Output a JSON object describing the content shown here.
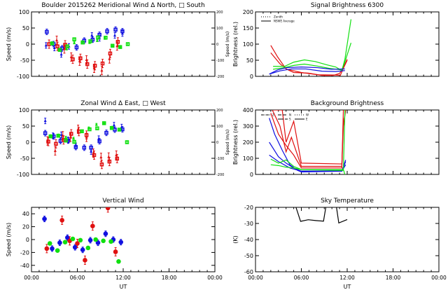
{
  "colors": {
    "blue": "#1010e0",
    "red": "#e01010",
    "green": "#10e010",
    "axis": "#000000"
  },
  "x_axis": {
    "label": "UT",
    "ticks": [
      "00:00",
      "06:00",
      "12:00",
      "18:00",
      "00:00"
    ],
    "range_hours": [
      0,
      24
    ]
  },
  "chart_data": [
    {
      "id": "meridional",
      "type": "scatter",
      "title": "Boulder   2015262     Meridional Wind   Δ North, □ South",
      "ylabel": "Speed (m/s)",
      "ylim": [
        -100,
        100
      ],
      "yticks": [
        "100",
        "50",
        "0",
        "-50",
        "-100"
      ],
      "right_axis": {
        "label": "Speed (m/s)",
        "ticks": [
          "200",
          "100",
          "0",
          "-100",
          "-200"
        ],
        "ylim": [
          -200,
          200
        ]
      },
      "series": [
        {
          "color": "blue",
          "marker": "triangle",
          "x": [
            1.9,
            3.0,
            3.9,
            4.9,
            7.9,
            8.9,
            10.9,
            11.9
          ],
          "y": [
            -4,
            -12,
            -32,
            -7,
            27,
            18,
            27,
            33
          ]
        },
        {
          "color": "blue",
          "marker": "square",
          "x": [
            2.0,
            2.9,
            4.0,
            5.9,
            6.9,
            8.0,
            8.9,
            9.9,
            11.0,
            11.9
          ],
          "y": [
            38,
            0,
            -13,
            -10,
            11,
            14,
            29,
            40,
            45,
            40
          ]
        },
        {
          "color": "red",
          "marker": "triangle",
          "x": [
            3.3,
            4.3,
            5.2,
            6.3,
            7.2,
            8.2,
            9.2,
            10.2,
            11.2
          ],
          "y": [
            12,
            -15,
            -40,
            -53,
            -49,
            -75,
            -82,
            -46,
            -6
          ]
        },
        {
          "color": "red",
          "marker": "square",
          "x": [
            2.3,
            3.4,
            4.4,
            5.4,
            6.4,
            7.3,
            8.3,
            9.3,
            10.3,
            11.3
          ],
          "y": [
            0,
            -7,
            -2,
            -47,
            -44,
            -62,
            -67,
            -60,
            -29,
            7
          ]
        },
        {
          "color": "green",
          "marker": "triangle",
          "x": [
            2.6,
            3.6,
            4.6,
            5.6,
            6.6,
            7.6,
            8.6,
            9.6,
            10.6,
            11.6
          ],
          "y": [
            4,
            -16,
            -15,
            4,
            7,
            5,
            11,
            18,
            -5,
            -8
          ]
        },
        {
          "color": "green",
          "marker": "square",
          "x": [
            2.7,
            3.7,
            4.7,
            5.6,
            6.7,
            7.7,
            8.7,
            9.7,
            10.6,
            11.6,
            12.6
          ],
          "y": [
            2,
            -18,
            -7,
            15,
            5,
            9,
            21,
            20,
            -5,
            -9,
            0
          ]
        }
      ]
    },
    {
      "id": "zonal",
      "type": "scatter",
      "title": "Zonal Wind      Δ East, □ West",
      "ylabel": "Speed (m/s)",
      "ylim": [
        -100,
        100
      ],
      "yticks": [
        "100",
        "50",
        "0",
        "-50",
        "-100"
      ],
      "right_axis": {
        "label": "Speed (m/s)",
        "ticks": [
          "200",
          "100",
          "0",
          "-100",
          "-200"
        ],
        "ylim": [
          -200,
          200
        ]
      },
      "series": [
        {
          "color": "blue",
          "marker": "triangle",
          "x": [
            1.8,
            2.8,
            3.9,
            4.8,
            5.8,
            7.8,
            8.8,
            10.8,
            11.8
          ],
          "y": [
            66,
            20,
            23,
            7,
            -11,
            -29,
            11,
            53,
            47
          ]
        },
        {
          "color": "blue",
          "marker": "square",
          "x": [
            1.8,
            2.9,
            3.8,
            4.8,
            5.8,
            6.9,
            7.8,
            8.9,
            9.8,
            10.9,
            11.9
          ],
          "y": [
            28,
            18,
            4,
            5,
            -15,
            -17,
            -17,
            3,
            29,
            39,
            40
          ]
        },
        {
          "color": "red",
          "marker": "triangle",
          "x": [
            2.1,
            3.1,
            4.1,
            5.1,
            6.1,
            7.2,
            8.1,
            9.1,
            10.1,
            11.1
          ],
          "y": [
            4,
            -27,
            20,
            15,
            40,
            15,
            -34,
            -47,
            -46,
            -40
          ]
        },
        {
          "color": "red",
          "marker": "square",
          "x": [
            2.2,
            3.2,
            4.2,
            5.2,
            6.2,
            7.2,
            8.2,
            9.2,
            10.2,
            11.2
          ],
          "y": [
            2,
            -5,
            7,
            26,
            33,
            22,
            -40,
            -69,
            -60,
            -51
          ]
        },
        {
          "color": "green",
          "marker": "triangle",
          "x": [
            2.5,
            3.5,
            4.5,
            5.5,
            6.6,
            7.5,
            8.5,
            9.5,
            10.5,
            11.5
          ],
          "y": [
            20,
            22,
            15,
            12,
            33,
            44,
            55,
            59,
            46,
            39
          ]
        },
        {
          "color": "green",
          "marker": "square",
          "x": [
            2.5,
            3.5,
            4.5,
            5.6,
            6.6,
            7.6,
            8.6,
            9.5,
            10.5,
            11.5,
            12.5
          ],
          "y": [
            18,
            20,
            5,
            1,
            34,
            40,
            43,
            59,
            44,
            39,
            0
          ]
        }
      ]
    },
    {
      "id": "vertical",
      "type": "scatter",
      "title": "Vertical Wind",
      "ylabel": "Speed (m/s)",
      "xlabel": "UT",
      "ylim": [
        -50,
        50
      ],
      "yticks": [
        "40",
        "20",
        "0",
        "-20",
        "-40"
      ],
      "series": [
        {
          "color": "blue",
          "marker": "circle",
          "x": [
            1.7,
            2.7,
            3.7,
            4.7,
            5.7,
            6.7,
            7.7,
            8.7,
            9.7,
            10.7,
            11.7
          ],
          "y": [
            32,
            -14,
            -5,
            3,
            -12,
            -16,
            -1,
            -5,
            9,
            0,
            -4
          ]
        },
        {
          "color": "red",
          "marker": "circle",
          "x": [
            2.0,
            4.0,
            5.0,
            6.0,
            7.0,
            8.0,
            10.0,
            11.0
          ],
          "y": [
            -14,
            30,
            -2,
            -6,
            -32,
            21,
            49,
            -19
          ]
        },
        {
          "color": "green",
          "marker": "circle",
          "x": [
            2.4,
            3.4,
            4.4,
            5.4,
            6.4,
            7.4,
            8.4,
            9.4,
            10.4,
            11.4
          ],
          "y": [
            -6,
            -17,
            -4,
            1,
            -1,
            -13,
            0,
            -2,
            -3,
            -34
          ]
        }
      ]
    },
    {
      "id": "signal",
      "type": "line",
      "title": "Signal Brightness      6300",
      "ylabel": "Brightness (rel.)",
      "ylim": [
        0,
        200
      ],
      "yticks": [
        "200",
        "150",
        "100",
        "50",
        "0"
      ],
      "legend": {
        "position": "top-left",
        "entries": [
          {
            "label": "Zenith",
            "style": "dotted"
          },
          {
            "label": "NSWE Average",
            "style": "solid"
          }
        ]
      },
      "series": [
        {
          "color": "red",
          "x": [
            2,
            2.9,
            4,
            5,
            6.9,
            8.7,
            10.2,
            11,
            11.4,
            12
          ],
          "y": [
            96,
            60,
            23,
            12,
            10,
            3,
            3,
            9,
            23,
            53
          ]
        },
        {
          "color": "red",
          "x": [
            2,
            3.2,
            4.1,
            6,
            8.1,
            10.5,
            11.1,
            11.5,
            12
          ],
          "y": [
            73,
            39,
            22,
            12,
            5,
            4,
            3,
            25,
            50
          ]
        },
        {
          "color": "green",
          "x": [
            2.3,
            3.8,
            5,
            6.4,
            7.8,
            9.3,
            10.5,
            11.3,
            11.7,
            12.5
          ],
          "y": [
            31,
            31,
            44,
            51,
            46,
            36,
            29,
            18,
            53,
            177
          ]
        },
        {
          "color": "green",
          "x": [
            2.3,
            3.8,
            5,
            6.4,
            8.1,
            9.6,
            11.3,
            11.7,
            12.5
          ],
          "y": [
            22,
            27,
            34,
            38,
            32,
            25,
            20,
            45,
            104
          ]
        },
        {
          "color": "blue",
          "x": [
            1.8,
            2.9,
            4.1,
            6,
            8.1,
            9.9,
            11.7
          ],
          "y": [
            7,
            20,
            27,
            29,
            27,
            22,
            23
          ]
        },
        {
          "color": "blue",
          "x": [
            1.8,
            3.2,
            4.7,
            6.6,
            8.7,
            10.5,
            11.7
          ],
          "y": [
            7,
            17,
            23,
            23,
            16,
            15,
            18
          ]
        }
      ]
    },
    {
      "id": "background",
      "type": "line",
      "title": "Background Brightness",
      "ylabel": "Brightness (rel.)",
      "ylim": [
        0,
        400
      ],
      "yticks": [
        "400",
        "300",
        "200",
        "100",
        "0"
      ],
      "legend": {
        "position": "top-left",
        "entries": [
          {
            "label": "Z"
          },
          {
            "label": "N"
          },
          {
            "label": "S"
          },
          {
            "label": "W"
          },
          {
            "label": "E"
          }
        ]
      },
      "series": [
        {
          "color": "red",
          "x": [
            2.4,
            3.5,
            4.0,
            5.0,
            6.0,
            11.3,
            11.5,
            11.8
          ],
          "y": [
            400,
            400,
            200,
            330,
            70,
            65,
            300,
            400
          ]
        },
        {
          "color": "red",
          "x": [
            2.2,
            3.2,
            4.0,
            4.7,
            6.0,
            11.3,
            11.5
          ],
          "y": [
            400,
            300,
            140,
            230,
            50,
            50,
            400
          ]
        },
        {
          "color": "red",
          "x": [
            2.0,
            3.0,
            4.0,
            5.0,
            6.0,
            11.3,
            11.5
          ],
          "y": [
            380,
            250,
            180,
            120,
            40,
            40,
            350
          ]
        },
        {
          "color": "blue",
          "x": [
            1.8,
            2.5,
            3.5,
            4.5,
            5.5,
            6.0,
            11.3,
            11.8
          ],
          "y": [
            350,
            250,
            150,
            60,
            25,
            15,
            20,
            90
          ]
        },
        {
          "color": "blue",
          "x": [
            1.8,
            3.0,
            4.0,
            5.0,
            6.0,
            11.3,
            11.8
          ],
          "y": [
            200,
            110,
            70,
            40,
            20,
            20,
            80
          ]
        },
        {
          "color": "blue",
          "x": [
            1.8,
            3.0,
            4.5,
            6.0,
            11.3,
            11.8
          ],
          "y": [
            120,
            80,
            40,
            20,
            20,
            60
          ]
        },
        {
          "color": "green",
          "x": [
            2.0,
            3.0,
            4.0,
            5.0,
            6.0,
            11.5,
            11.7
          ],
          "y": [
            95,
            70,
            90,
            50,
            30,
            30,
            0
          ]
        },
        {
          "color": "green",
          "x": [
            2.0,
            3.0,
            4.0,
            5.0,
            6.0,
            11.5,
            11.7
          ],
          "y": [
            60,
            55,
            45,
            40,
            30,
            25,
            400
          ]
        }
      ]
    },
    {
      "id": "sky",
      "type": "line",
      "title": "Sky Temperature",
      "ylabel": "(K)",
      "xlabel": "UT",
      "ylim": [
        -60,
        -20
      ],
      "yticks": [
        "-20",
        "-30",
        "-40",
        "-50",
        "-60"
      ],
      "series": [
        {
          "color": "axis",
          "x": [
            5.3,
            5.9,
            6.9,
            7.9,
            8.9,
            9.2
          ],
          "y": [
            -20,
            -28.7,
            -27.7,
            -28.2,
            -28.6,
            -20
          ]
        },
        {
          "color": "axis",
          "x": [
            10.6,
            10.9,
            12.0
          ],
          "y": [
            -20,
            -29.7,
            -27.6
          ]
        }
      ]
    }
  ]
}
